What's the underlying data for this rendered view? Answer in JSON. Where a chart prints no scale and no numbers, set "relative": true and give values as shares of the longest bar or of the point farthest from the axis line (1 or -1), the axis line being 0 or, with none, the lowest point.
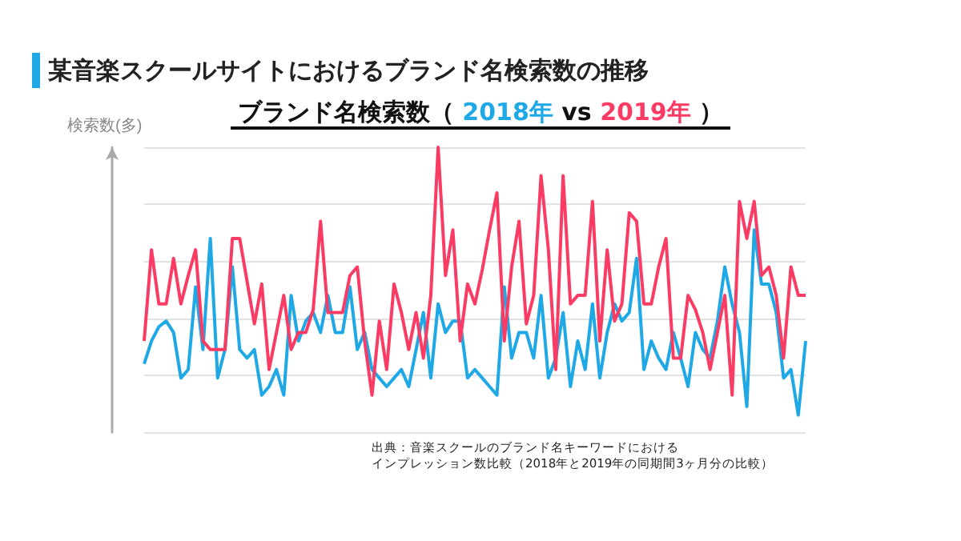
{
  "chart_data": {
    "type": "line",
    "title": "某音楽スクールサイトにおけるブランド名検索数の推移",
    "subtitle": "ブランド名検索数（",
    "ylabel": "検索数(多)",
    "relative": true,
    "grid": "y",
    "legend": false,
    "marker": "none",
    "line_style": "solid",
    "categories": [
      null,
      null,
      null,
      null,
      null,
      null,
      null,
      null,
      null,
      null,
      null,
      null,
      null,
      null,
      null,
      null,
      null,
      null,
      null,
      null,
      null,
      null,
      null,
      null,
      null,
      null,
      null,
      null,
      null,
      null,
      null,
      null,
      null,
      null,
      null,
      null,
      null,
      null,
      null,
      null,
      null,
      null,
      null,
      null,
      null,
      null,
      null,
      null,
      null,
      null,
      null,
      null,
      null,
      null,
      null,
      null,
      null,
      null,
      null,
      null,
      null,
      null,
      null,
      null,
      null,
      null,
      null,
      null,
      null,
      null,
      null,
      null,
      null,
      null,
      null,
      null,
      null,
      null,
      null,
      null,
      null,
      null,
      null,
      null,
      null,
      null,
      null,
      null,
      null,
      null,
      null
    ],
    "series": [
      {
        "name": "2018年",
        "color": "#1ea8e6",
        "values": [
          0.24,
          0.32,
          0.37,
          0.39,
          0.35,
          0.19,
          0.22,
          0.51,
          0.29,
          0.68,
          0.19,
          0.29,
          0.58,
          0.29,
          0.26,
          0.29,
          0.13,
          0.16,
          0.22,
          0.13,
          0.48,
          0.32,
          0.39,
          0.42,
          0.35,
          0.48,
          0.35,
          0.35,
          0.51,
          0.29,
          0.35,
          0.22,
          0.19,
          0.16,
          0.19,
          0.22,
          0.16,
          0.29,
          0.42,
          0.19,
          0.45,
          0.35,
          0.39,
          0.39,
          0.19,
          0.22,
          0.19,
          0.16,
          0.13,
          0.51,
          0.26,
          0.35,
          0.35,
          0.26,
          0.48,
          0.19,
          0.26,
          0.42,
          0.16,
          0.32,
          0.22,
          0.45,
          0.19,
          0.35,
          0.45,
          0.39,
          0.42,
          0.61,
          0.22,
          0.32,
          0.26,
          0.22,
          0.35,
          0.26,
          0.16,
          0.35,
          0.29,
          0.26,
          0.39,
          0.58,
          0.45,
          0.35,
          0.09,
          0.71,
          0.52,
          0.52,
          0.42,
          0.19,
          0.22,
          0.06,
          0.32
        ]
      },
      {
        "name": "2019年",
        "color": "#fa3c64",
        "values": [
          0.32,
          0.64,
          0.45,
          0.45,
          0.61,
          0.45,
          0.55,
          0.64,
          0.32,
          0.29,
          0.29,
          0.29,
          0.68,
          0.68,
          0.53,
          0.38,
          0.52,
          0.22,
          0.35,
          0.48,
          0.29,
          0.35,
          0.35,
          0.43,
          0.74,
          0.42,
          0.42,
          0.42,
          0.55,
          0.58,
          0.32,
          0.13,
          0.39,
          0.22,
          0.52,
          0.42,
          0.29,
          0.42,
          0.26,
          0.48,
          1,
          0.55,
          0.71,
          0.32,
          0.52,
          0.45,
          0.57,
          0.71,
          0.84,
          0.32,
          0.58,
          0.74,
          0.38,
          0.48,
          0.9,
          0.64,
          0.22,
          0.9,
          0.45,
          0.48,
          0.48,
          0.81,
          0.32,
          0.64,
          0.39,
          0.45,
          0.77,
          0.74,
          0.45,
          0.45,
          0.58,
          0.68,
          0.26,
          0.26,
          0.48,
          0.43,
          0.35,
          0.22,
          0.35,
          0.48,
          0.13,
          0.81,
          0.68,
          0.81,
          0.55,
          0.58,
          0.48,
          0.26,
          0.58,
          0.48,
          0.48
        ]
      }
    ],
    "annotations": [
      "vs",
      "）",
      "出典：音楽スクールのブランド名キーワードにおける",
      "インプレッション数比較（2018年と2019年の同期間3ヶ月分の比較）"
    ]
  }
}
